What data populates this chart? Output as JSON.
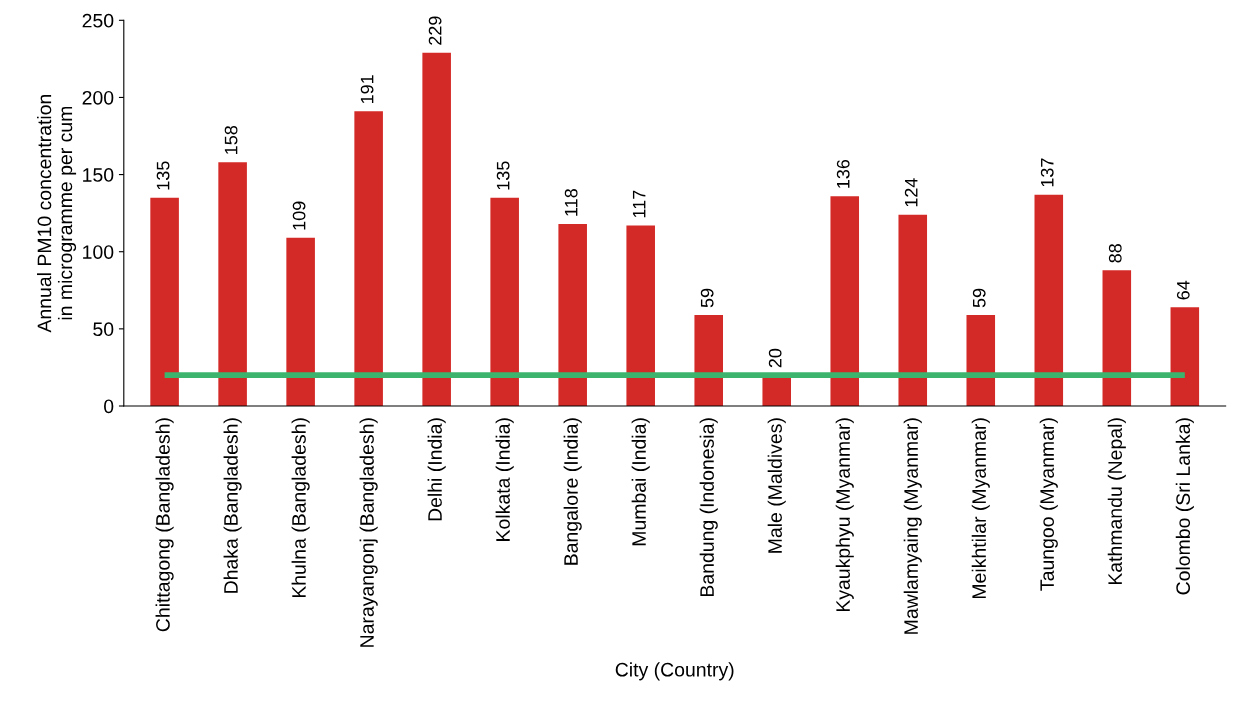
{
  "chart_data": {
    "type": "bar",
    "xlabel": "City (Country)",
    "ylabel": "Annual PM10 concentration\nin microgramme per cum",
    "categories": [
      "Chittagong (Bangladesh)",
      "Dhaka (Bangladesh)",
      "Khulna (Bangladesh)",
      "Narayangonj (Bangladesh)",
      "Delhi (India)",
      "Kolkata (India)",
      "Bangalore (India)",
      "Mumbai (India)",
      "Bandung (Indonesia)",
      "Male (Maldives)",
      "Kyaukphyu (Myanmar)",
      "Mawlamyaing (Myanmar)",
      "Meikhtilar (Myanmar)",
      "Taungoo (Myanmar)",
      "Kathmandu (Nepal)",
      "Colombo (Sri Lanka)"
    ],
    "values": [
      135,
      158,
      109,
      191,
      229,
      135,
      118,
      117,
      59,
      20,
      136,
      124,
      59,
      137,
      88,
      64
    ],
    "color": "#d42a27",
    "ylim": [
      0,
      250
    ],
    "yticks": [
      0,
      50,
      100,
      150,
      200,
      250
    ],
    "grid": false,
    "data_labels": true,
    "ref_lines": [
      {
        "axis": "y",
        "value": 20,
        "label": null,
        "color": "#3cb46e",
        "line_style": "solid"
      }
    ]
  }
}
